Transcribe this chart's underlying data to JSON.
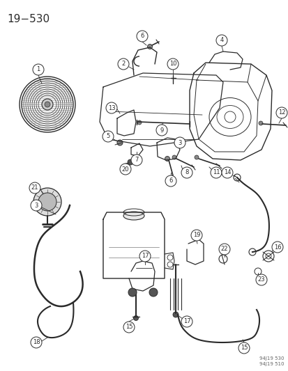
{
  "title": "19−530",
  "watermark_line1": "94J19 530",
  "watermark_line2": "94J19 510",
  "bg": "#ffffff",
  "lc": "#2a2a2a",
  "fig_width": 4.14,
  "fig_height": 5.33,
  "dpi": 100
}
